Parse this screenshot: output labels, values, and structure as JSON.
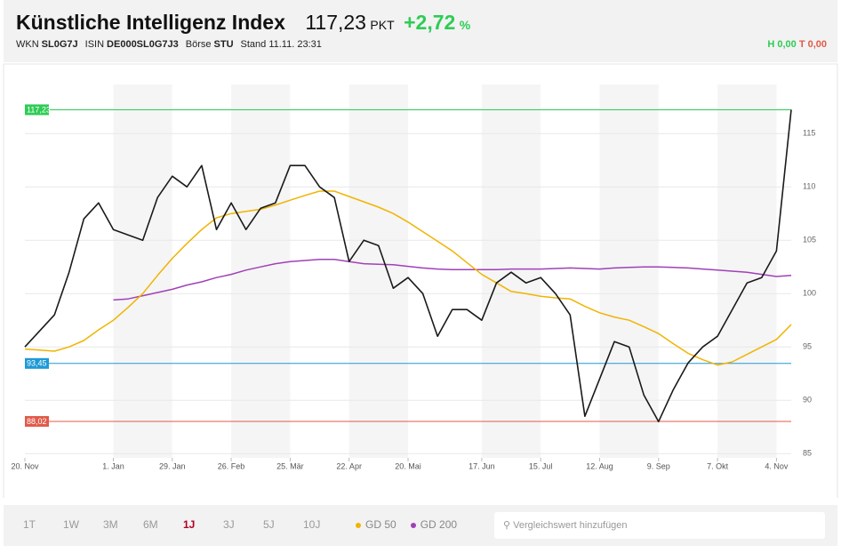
{
  "header": {
    "title": "Künstliche Intelligenz Index",
    "price": "117,23",
    "unit": "PKT",
    "change": "+2,72",
    "change_unit": "%",
    "meta": [
      {
        "label": "WKN",
        "value": "SL0G7J"
      },
      {
        "label": "ISIN",
        "value": "DE000SL0G7J3"
      },
      {
        "label": "Börse",
        "value": "STU"
      }
    ],
    "stand": "Stand 11.11. 23:31",
    "high": "H 0,00",
    "low": "T 0,00"
  },
  "chart_data": {
    "type": "line",
    "categories": [
      "20. Nov",
      null,
      null,
      null,
      null,
      null,
      "1. Jan",
      null,
      null,
      null,
      "29. Jan",
      null,
      null,
      null,
      "26. Feb",
      null,
      null,
      null,
      "25. Mär",
      null,
      null,
      null,
      "22. Apr",
      null,
      null,
      null,
      "20. Mai",
      null,
      null,
      null,
      null,
      "17. Jun",
      null,
      null,
      null,
      "15. Jul",
      null,
      null,
      null,
      "12. Aug",
      null,
      null,
      null,
      "9. Sep",
      null,
      null,
      null,
      "7. Okt",
      null,
      null,
      null,
      "4. Nov",
      null
    ],
    "series": [
      {
        "color": "#1a1a1a",
        "values": [
          95,
          96.5,
          98,
          102,
          107,
          108.5,
          106,
          105.5,
          105,
          109,
          111,
          110,
          112,
          106,
          108.5,
          106,
          108,
          108.5,
          112,
          112,
          110,
          109,
          103,
          105,
          104.5,
          100.5,
          101.5,
          100,
          96,
          98.5,
          98.5,
          97.5,
          101,
          102,
          101,
          101.5,
          100,
          98,
          88.5,
          92,
          95.5,
          95,
          90.5,
          88,
          91,
          93.5,
          95,
          96,
          98.5,
          101,
          101.5,
          104,
          117.23
        ]
      },
      {
        "name": "GD 50",
        "color": "#f0b400",
        "values": [
          94.8,
          94.7,
          94.6,
          95.0,
          95.6,
          96.6,
          97.5,
          98.7,
          100.0,
          101.7,
          103.3,
          104.7,
          106.0,
          107.1,
          107.5,
          107.7,
          107.9,
          108.3,
          108.75,
          109.2,
          109.6,
          109.6,
          109.1,
          108.6,
          108.1,
          107.5,
          106.7,
          105.8,
          104.9,
          104.0,
          102.9,
          101.8,
          101.0,
          100.2,
          100.0,
          99.75,
          99.6,
          99.5,
          98.8,
          98.2,
          97.8,
          97.5,
          96.9,
          96.25,
          95.3,
          94.4,
          93.8,
          93.3,
          93.6,
          94.3,
          95.0,
          95.7,
          97.1
        ]
      },
      {
        "name": "GD 200",
        "color": "#a040b8",
        "values": [
          null,
          null,
          null,
          null,
          null,
          null,
          99.4,
          99.5,
          99.8,
          100.1,
          100.4,
          100.8,
          101.1,
          101.5,
          101.8,
          102.2,
          102.5,
          102.8,
          103.0,
          103.1,
          103.2,
          103.2,
          103.0,
          102.8,
          102.75,
          102.7,
          102.55,
          102.4,
          102.3,
          102.25,
          102.25,
          102.25,
          102.25,
          102.3,
          102.3,
          102.3,
          102.35,
          102.4,
          102.35,
          102.3,
          102.4,
          102.45,
          102.5,
          102.5,
          102.45,
          102.4,
          102.3,
          102.2,
          102.1,
          102.0,
          101.8,
          101.6,
          101.7
        ]
      }
    ],
    "reference_lines": [
      {
        "value": 117.23,
        "label": "117,23",
        "color": "#2ecc55"
      },
      {
        "value": 93.45,
        "label": "93,45",
        "color": "#1e9ad6"
      },
      {
        "value": 88.02,
        "label": "88,02",
        "color": "#e05a4a"
      }
    ],
    "ylim": [
      84.6,
      119.6
    ],
    "yticks": [
      85,
      90,
      95,
      100,
      105,
      110,
      115
    ],
    "grid": true
  },
  "footer": {
    "ranges": [
      "1T",
      "1W",
      "3M",
      "6M",
      "1J",
      "3J",
      "5J",
      "10J"
    ],
    "active_range": 4,
    "search_placeholder": "Vergleichswert hinzufügen"
  }
}
